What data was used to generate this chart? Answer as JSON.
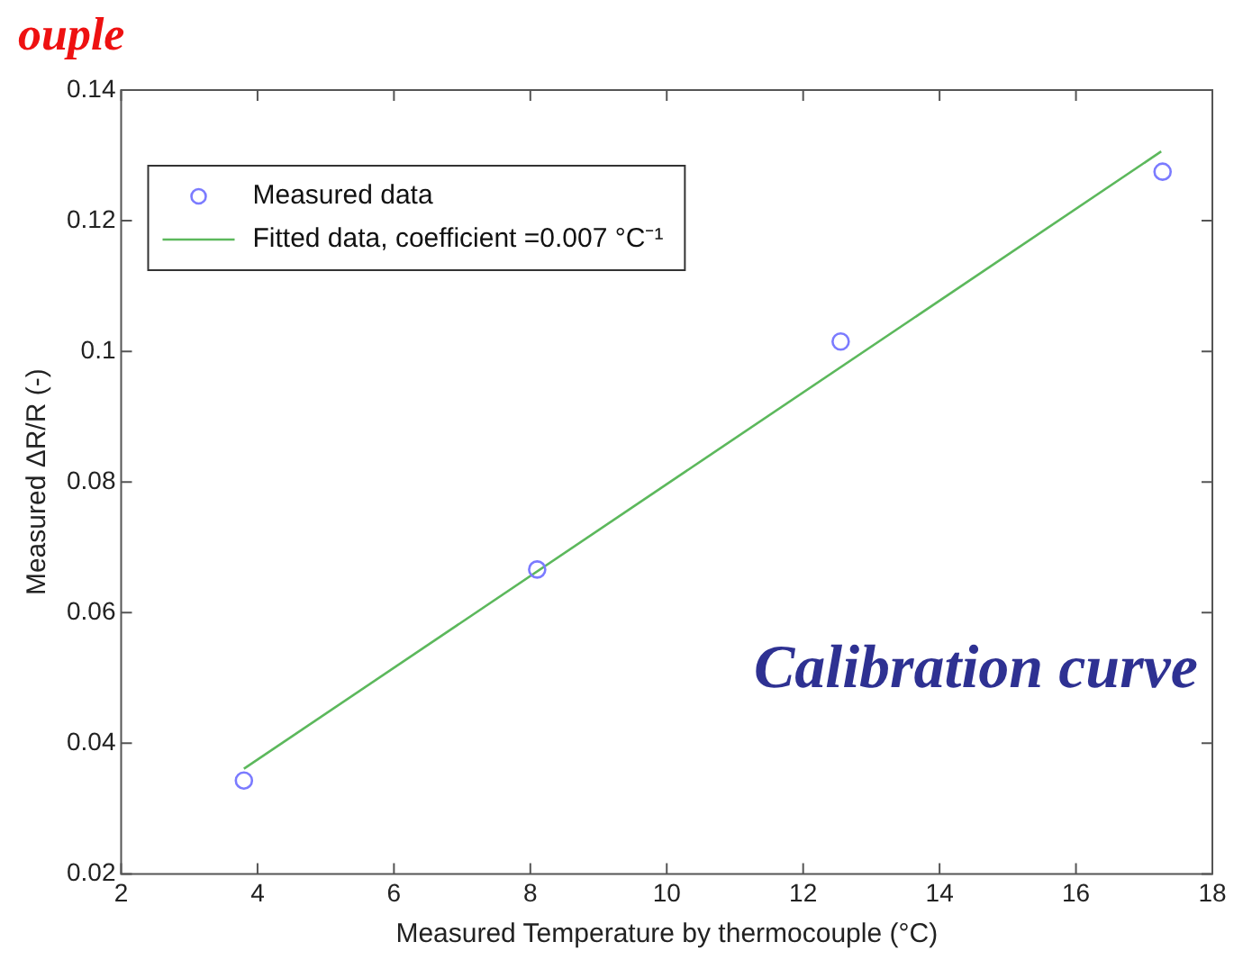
{
  "chart_data": {
    "type": "scatter",
    "xlabel": "Measured Temperature by thermocouple (°C)",
    "ylabel": "Measured ΔR/R (-)",
    "annotations": [
      "ouple",
      "Calibration curve"
    ],
    "series": [
      {
        "name": "Measured data",
        "type": "scatter",
        "color": "#7b7bff",
        "marker": "circle",
        "x": [
          3.8,
          8.1,
          12.55,
          17.27
        ],
        "values": [
          0.0343,
          0.0666,
          0.1015,
          0.1275
        ]
      },
      {
        "name": "Fitted data, coefficient =0.007 °C⁻¹",
        "type": "line",
        "color": "#5cb85c",
        "marker": "none",
        "line_style": "solid",
        "x": [
          3.8,
          17.25
        ],
        "values": [
          0.0361,
          0.1306
        ]
      }
    ],
    "xlim": [
      2,
      18
    ],
    "xticks": [
      2,
      4,
      6,
      8,
      10,
      12,
      14,
      16,
      18
    ],
    "ylim": [
      0.02,
      0.14
    ],
    "yticks": [
      0.02,
      0.04,
      0.06,
      0.08,
      0.1,
      0.12,
      0.14
    ],
    "grid": false,
    "legend": "top left"
  }
}
